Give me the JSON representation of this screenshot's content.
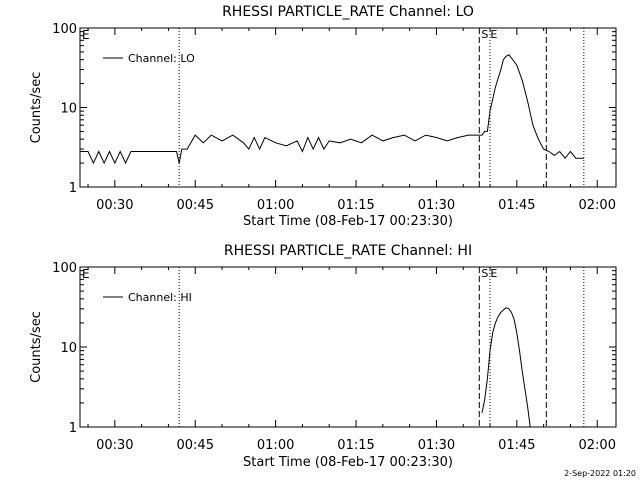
{
  "footer": "2-Sep-2022 01:20",
  "chart_data": [
    {
      "type": "line",
      "title": "RHESSI PARTICLE_RATE Channel: LO",
      "xlabel": "Start Time (08-Feb-17 00:23:30)",
      "ylabel": "Counts/sec",
      "yscale": "log",
      "ylim": [
        1,
        100
      ],
      "xlim": [
        "00:23:30",
        "02:03:30"
      ],
      "x_ticks": [
        "00:30",
        "00:45",
        "01:00",
        "01:15",
        "01:30",
        "01:45",
        "02:00"
      ],
      "y_ticks": [
        "1",
        "10",
        "100"
      ],
      "legend": "Channel: LO",
      "legend_position": "top-left",
      "corner_label": "E",
      "marker_labels": [
        "S",
        "E"
      ],
      "dotted_lines": [
        "00:42:00",
        "01:40:00",
        "01:57:30"
      ],
      "dashed_lines": [
        "01:38:00",
        "01:50:30"
      ],
      "series": [
        {
          "x": [
            "00:23:30",
            "00:25:00",
            "00:26:00",
            "00:27:00",
            "00:28:00",
            "00:29:00",
            "00:30:00",
            "00:31:00",
            "00:32:00",
            "00:33:00",
            "00:34:00",
            "00:35:00",
            "00:36:00",
            "00:38:00",
            "00:40:00",
            "00:41:30",
            "00:42:00",
            "00:42:30",
            "00:43:30",
            "00:45:00",
            "00:46:30",
            "00:48:00",
            "00:50:00",
            "00:52:00",
            "00:54:00",
            "00:55:00",
            "00:56:00",
            "00:57:00",
            "00:58:00",
            "01:00:00",
            "01:02:00",
            "01:04:00",
            "01:05:00",
            "01:06:00",
            "01:07:00",
            "01:08:00",
            "01:09:00",
            "01:10:00",
            "01:12:00",
            "01:14:00",
            "01:16:00",
            "01:18:00",
            "01:20:00",
            "01:22:00",
            "01:24:00",
            "01:26:00",
            "01:28:00",
            "01:30:00",
            "01:32:00",
            "01:34:00",
            "01:36:00",
            "01:37:30",
            "01:38:30",
            "01:39:00",
            "01:39:30",
            "01:40:00",
            "01:41:00",
            "01:42:00",
            "01:42:30",
            "01:43:00",
            "01:43:30",
            "01:44:00",
            "01:45:00",
            "01:46:00",
            "01:47:00",
            "01:48:00",
            "01:49:00",
            "01:50:00",
            "01:51:00",
            "01:52:00",
            "01:53:00",
            "01:54:00",
            "01:55:00",
            "01:56:00",
            "01:57:00",
            "01:57:30"
          ],
          "y": [
            2.8,
            2.8,
            2,
            2.8,
            2,
            2.8,
            2,
            2.8,
            2,
            2.8,
            2.8,
            2.8,
            2.8,
            2.8,
            2.8,
            2.8,
            2,
            3,
            3,
            4.5,
            3.6,
            4.5,
            3.8,
            4.5,
            3.6,
            3,
            4.2,
            3,
            4.2,
            3.6,
            3.3,
            3.8,
            2.8,
            4.2,
            3,
            4.2,
            3,
            3.8,
            3.6,
            4,
            3.6,
            4.5,
            3.8,
            4.2,
            4.5,
            3.8,
            4.5,
            4.2,
            3.8,
            4.2,
            4.5,
            4.5,
            4.5,
            5,
            5,
            9,
            18,
            30,
            40,
            44,
            46,
            42,
            34,
            22,
            12,
            6,
            4,
            3,
            2.8,
            2.5,
            2.8,
            2.3,
            2.8,
            2.3,
            2.3,
            2.3
          ]
        }
      ]
    },
    {
      "type": "line",
      "title": "RHESSI PARTICLE_RATE Channel: HI",
      "xlabel": "Start Time (08-Feb-17 00:23:30)",
      "ylabel": "Counts/sec",
      "yscale": "log",
      "ylim": [
        1,
        100
      ],
      "xlim": [
        "00:23:30",
        "02:03:30"
      ],
      "x_ticks": [
        "00:30",
        "00:45",
        "01:00",
        "01:15",
        "01:30",
        "01:45",
        "02:00"
      ],
      "y_ticks": [
        "1",
        "10",
        "100"
      ],
      "legend": "Channel: HI",
      "legend_position": "top-left",
      "corner_label": "E",
      "marker_labels": [
        "S",
        "E"
      ],
      "dotted_lines": [
        "00:42:00",
        "01:40:00",
        "01:57:30"
      ],
      "dashed_lines": [
        "01:38:00",
        "01:50:30"
      ],
      "series": [
        {
          "x": [
            "01:38:30",
            "01:39:00",
            "01:39:30",
            "01:40:00",
            "01:40:30",
            "01:41:00",
            "01:41:30",
            "01:42:00",
            "01:42:30",
            "01:43:00",
            "01:43:30",
            "01:44:00",
            "01:44:30",
            "01:45:00",
            "01:45:30",
            "01:46:00",
            "01:46:30",
            "01:47:00",
            "01:47:30"
          ],
          "y": [
            1.5,
            2.2,
            4,
            9,
            15,
            20,
            24,
            27,
            29,
            31,
            30,
            27,
            22,
            15,
            9,
            5,
            3,
            1.8,
            1
          ]
        }
      ]
    }
  ]
}
